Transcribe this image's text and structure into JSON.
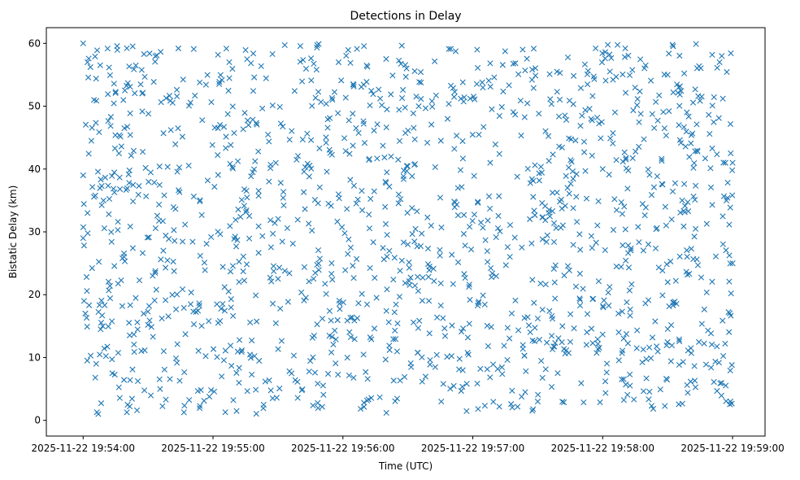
{
  "chart_data": {
    "type": "scatter",
    "title": "Detections in Delay",
    "xlabel": "Time (UTC)",
    "ylabel": "Bistatic Delay (km)",
    "x_start": "2025-11-22 19:54:00",
    "x_end": "2025-11-22 19:59:00",
    "xlim": [
      "2025-11-22 19:53:43",
      "2025-11-22 19:59:15"
    ],
    "ylim": [
      -2.5,
      62.5
    ],
    "x_ticks": [
      "2025-11-22 19:54:00",
      "2025-11-22 19:55:00",
      "2025-11-22 19:56:00",
      "2025-11-22 19:57:00",
      "2025-11-22 19:58:00",
      "2025-11-22 19:59:00"
    ],
    "y_ticks": [
      "0",
      "10",
      "20",
      "30",
      "40",
      "50",
      "60"
    ],
    "y_tick_values": [
      0,
      10,
      20,
      30,
      40,
      50,
      60
    ],
    "marker": "x",
    "color": "#1f77b4",
    "grid": false,
    "legend": "none",
    "point_count": 1500,
    "y_range": [
      1,
      60
    ],
    "series": [
      {
        "points": [
          [
            "2025-11-22 19:54:00",
            60
          ],
          [
            "2025-11-22 19:54:02",
            57
          ],
          [
            "2025-11-22 19:54:05",
            51
          ],
          [
            "2025-11-22 19:54:00",
            39
          ],
          [
            "2025-11-22 19:54:02",
            33
          ],
          [
            "2025-11-22 19:54:00",
            29
          ],
          [
            "2025-11-22 19:54:01",
            17
          ],
          [
            "2025-11-22 19:54:06",
            9
          ],
          [
            "2025-11-22 19:54:07",
            1
          ],
          [
            "2025-11-22 19:55:58",
            57
          ],
          [
            "2025-11-22 19:56:30",
            28
          ],
          [
            "2025-11-22 19:56:35",
            50
          ],
          [
            "2025-11-22 19:57:02",
            59
          ],
          [
            "2025-11-22 19:57:30",
            3
          ],
          [
            "2025-11-22 19:58:00",
            40
          ],
          [
            "2025-11-22 19:58:30",
            55
          ],
          [
            "2025-11-22 19:58:55",
            58
          ],
          [
            "2025-11-22 19:58:59",
            3
          ],
          [
            "2025-11-22 19:59:00",
            41
          ],
          [
            "2025-11-22 19:59:00",
            25
          ]
        ]
      }
    ]
  }
}
